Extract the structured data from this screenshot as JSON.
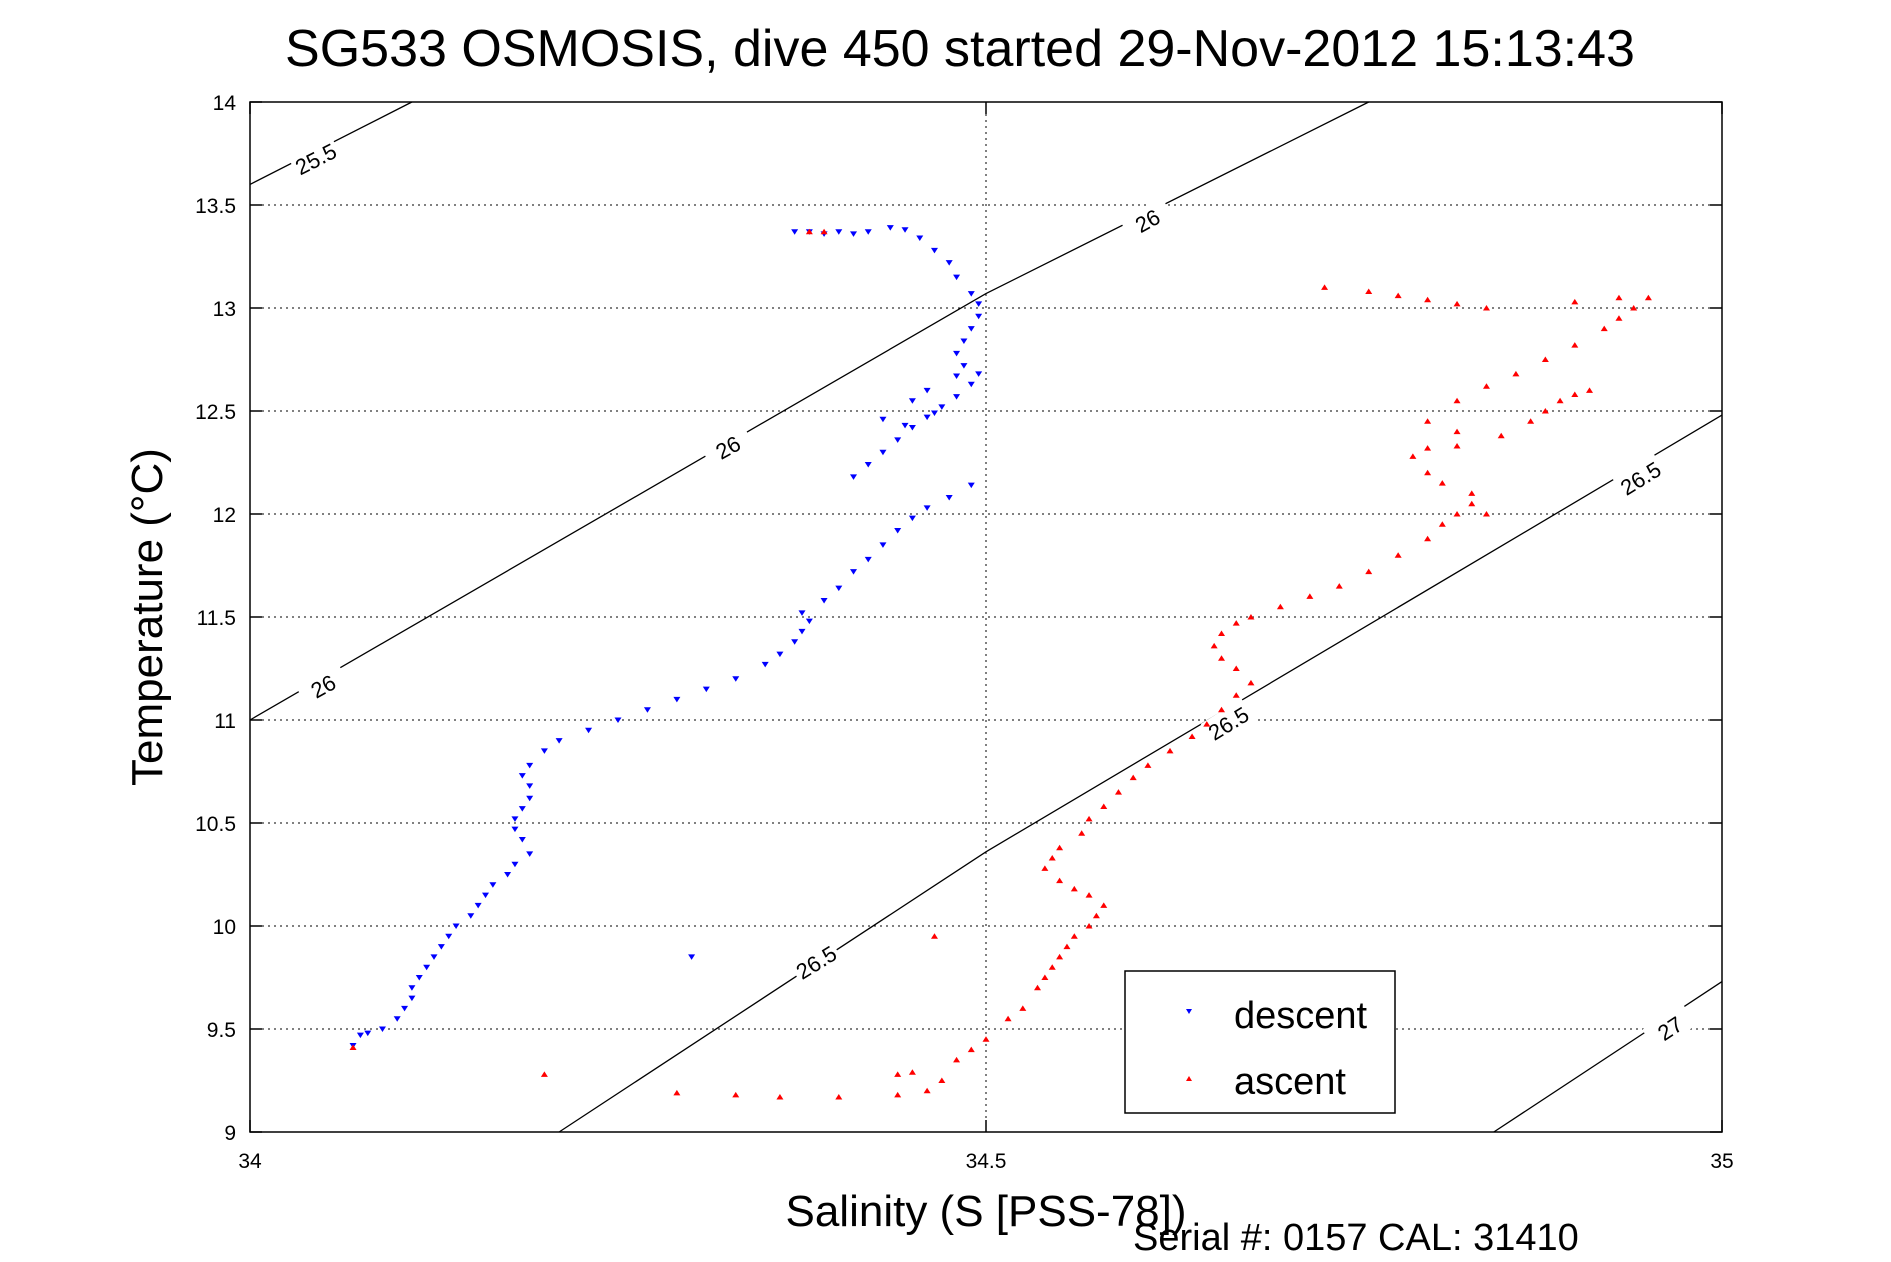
{
  "chart_data": {
    "type": "scatter",
    "title": "SG533 OSMOSIS, dive 450 started 29-Nov-2012 15:13:43",
    "xlabel": "Salinity (S [PSS-78])",
    "ylabel": "Temperature (°C)",
    "xlim": [
      34,
      35
    ],
    "ylim": [
      9,
      14
    ],
    "x_ticks": [
      "34",
      "34.5",
      "35"
    ],
    "y_ticks": [
      "9",
      "9.5",
      "10",
      "10.5",
      "11",
      "11.5",
      "12",
      "12.5",
      "13",
      "13.5",
      "14"
    ],
    "grid": true,
    "legend_position": "bottom-right",
    "footer_text": "Serial #: 0157  CAL: 31410",
    "density_contours": [
      {
        "label": "25.5",
        "points": [
          [
            34,
            13.6
          ],
          [
            34.11,
            14.0
          ]
        ],
        "label_positions": [
          [
            34.045,
            13.72
          ]
        ]
      },
      {
        "label": "26",
        "points": [
          [
            34,
            11.0
          ],
          [
            34.5,
            13.07
          ],
          [
            34.76,
            14.0
          ]
        ],
        "label_positions": [
          [
            34.05,
            11.16
          ],
          [
            34.325,
            12.32
          ],
          [
            34.61,
            13.42
          ]
        ]
      },
      {
        "label": "26.5",
        "points": [
          [
            34.21,
            9.0
          ],
          [
            34.5,
            10.36
          ],
          [
            35,
            12.48
          ]
        ],
        "label_positions": [
          [
            34.385,
            9.82
          ],
          [
            34.665,
            10.98
          ],
          [
            34.945,
            12.17
          ]
        ]
      },
      {
        "label": "27",
        "points": [
          [
            34.845,
            9.0
          ],
          [
            35,
            9.73
          ]
        ],
        "label_positions": [
          [
            34.965,
            9.5
          ]
        ]
      }
    ],
    "series": [
      {
        "name": "descent",
        "color": "#0000ff",
        "marker": "triangle-down",
        "points": [
          [
            34.07,
            9.42
          ],
          [
            34.075,
            9.47
          ],
          [
            34.08,
            9.48
          ],
          [
            34.09,
            9.5
          ],
          [
            34.1,
            9.55
          ],
          [
            34.105,
            9.6
          ],
          [
            34.11,
            9.65
          ],
          [
            34.11,
            9.7
          ],
          [
            34.115,
            9.75
          ],
          [
            34.12,
            9.8
          ],
          [
            34.125,
            9.85
          ],
          [
            34.13,
            9.9
          ],
          [
            34.135,
            9.95
          ],
          [
            34.14,
            10.0
          ],
          [
            34.15,
            10.05
          ],
          [
            34.155,
            10.1
          ],
          [
            34.16,
            10.15
          ],
          [
            34.165,
            10.2
          ],
          [
            34.175,
            10.25
          ],
          [
            34.18,
            10.3
          ],
          [
            34.19,
            10.35
          ],
          [
            34.185,
            10.42
          ],
          [
            34.18,
            10.47
          ],
          [
            34.18,
            10.52
          ],
          [
            34.185,
            10.57
          ],
          [
            34.19,
            10.62
          ],
          [
            34.19,
            10.68
          ],
          [
            34.185,
            10.73
          ],
          [
            34.19,
            10.78
          ],
          [
            34.2,
            10.85
          ],
          [
            34.21,
            10.9
          ],
          [
            34.23,
            10.95
          ],
          [
            34.25,
            11.0
          ],
          [
            34.27,
            11.05
          ],
          [
            34.29,
            11.1
          ],
          [
            34.31,
            11.15
          ],
          [
            34.33,
            11.2
          ],
          [
            34.35,
            11.27
          ],
          [
            34.36,
            11.32
          ],
          [
            34.37,
            11.38
          ],
          [
            34.375,
            11.43
          ],
          [
            34.3,
            9.85
          ],
          [
            34.38,
            11.48
          ],
          [
            34.375,
            11.52
          ],
          [
            34.39,
            11.58
          ],
          [
            34.4,
            11.64
          ],
          [
            34.41,
            11.72
          ],
          [
            34.42,
            11.78
          ],
          [
            34.43,
            11.85
          ],
          [
            34.44,
            11.92
          ],
          [
            34.45,
            11.98
          ],
          [
            34.46,
            12.03
          ],
          [
            34.475,
            12.08
          ],
          [
            34.49,
            12.14
          ],
          [
            34.41,
            12.18
          ],
          [
            34.42,
            12.24
          ],
          [
            34.43,
            12.3
          ],
          [
            34.44,
            12.36
          ],
          [
            34.45,
            12.42
          ],
          [
            34.46,
            12.47
          ],
          [
            34.47,
            12.52
          ],
          [
            34.48,
            12.57
          ],
          [
            34.49,
            12.63
          ],
          [
            34.465,
            12.49
          ],
          [
            34.445,
            12.43
          ],
          [
            34.43,
            12.46
          ],
          [
            34.45,
            12.55
          ],
          [
            34.46,
            12.6
          ],
          [
            34.48,
            12.67
          ],
          [
            34.485,
            12.72
          ],
          [
            34.48,
            12.78
          ],
          [
            34.485,
            12.84
          ],
          [
            34.49,
            12.9
          ],
          [
            34.495,
            12.96
          ],
          [
            34.495,
            13.02
          ],
          [
            34.49,
            13.07
          ],
          [
            34.48,
            13.15
          ],
          [
            34.475,
            13.22
          ],
          [
            34.465,
            13.28
          ],
          [
            34.455,
            13.34
          ],
          [
            34.445,
            13.38
          ],
          [
            34.435,
            13.39
          ],
          [
            34.42,
            13.37
          ],
          [
            34.41,
            13.36
          ],
          [
            34.4,
            13.37
          ],
          [
            34.39,
            13.36
          ],
          [
            34.38,
            13.37
          ],
          [
            34.37,
            13.37
          ],
          [
            34.495,
            12.68
          ]
        ]
      },
      {
        "name": "ascent",
        "color": "#ff0000",
        "marker": "triangle-up",
        "points": [
          [
            34.07,
            9.41
          ],
          [
            34.2,
            9.28
          ],
          [
            34.29,
            9.19
          ],
          [
            34.33,
            9.18
          ],
          [
            34.36,
            9.17
          ],
          [
            34.4,
            9.17
          ],
          [
            34.44,
            9.18
          ],
          [
            34.46,
            9.2
          ],
          [
            34.47,
            9.25
          ],
          [
            34.44,
            9.28
          ],
          [
            34.45,
            9.29
          ],
          [
            34.465,
            9.95
          ],
          [
            34.48,
            9.35
          ],
          [
            34.49,
            9.4
          ],
          [
            34.5,
            9.45
          ],
          [
            34.515,
            9.55
          ],
          [
            34.525,
            9.6
          ],
          [
            34.535,
            9.7
          ],
          [
            34.54,
            9.75
          ],
          [
            34.545,
            9.8
          ],
          [
            34.55,
            9.85
          ],
          [
            34.555,
            9.9
          ],
          [
            34.56,
            9.95
          ],
          [
            34.57,
            10.0
          ],
          [
            34.575,
            10.05
          ],
          [
            34.58,
            10.1
          ],
          [
            34.57,
            10.15
          ],
          [
            34.56,
            10.18
          ],
          [
            34.55,
            10.22
          ],
          [
            34.54,
            10.28
          ],
          [
            34.545,
            10.33
          ],
          [
            34.55,
            10.38
          ],
          [
            34.565,
            10.45
          ],
          [
            34.57,
            10.52
          ],
          [
            34.58,
            10.58
          ],
          [
            34.59,
            10.65
          ],
          [
            34.6,
            10.72
          ],
          [
            34.61,
            10.78
          ],
          [
            34.625,
            10.85
          ],
          [
            34.64,
            10.92
          ],
          [
            34.65,
            10.98
          ],
          [
            34.66,
            11.05
          ],
          [
            34.67,
            11.12
          ],
          [
            34.68,
            11.18
          ],
          [
            34.67,
            11.25
          ],
          [
            34.66,
            11.3
          ],
          [
            34.655,
            11.36
          ],
          [
            34.66,
            11.42
          ],
          [
            34.67,
            11.47
          ],
          [
            34.68,
            11.5
          ],
          [
            34.7,
            11.55
          ],
          [
            34.72,
            11.6
          ],
          [
            34.74,
            11.65
          ],
          [
            34.76,
            11.72
          ],
          [
            34.78,
            11.8
          ],
          [
            34.8,
            11.88
          ],
          [
            34.81,
            11.95
          ],
          [
            34.82,
            12.0
          ],
          [
            34.83,
            12.05
          ],
          [
            34.84,
            12.0
          ],
          [
            34.83,
            12.1
          ],
          [
            34.81,
            12.15
          ],
          [
            34.8,
            12.2
          ],
          [
            34.79,
            12.28
          ],
          [
            34.8,
            12.32
          ],
          [
            34.82,
            12.33
          ],
          [
            34.85,
            12.38
          ],
          [
            34.87,
            12.45
          ],
          [
            34.88,
            12.5
          ],
          [
            34.89,
            12.55
          ],
          [
            34.9,
            12.58
          ],
          [
            34.91,
            12.6
          ],
          [
            34.82,
            12.4
          ],
          [
            34.8,
            12.45
          ],
          [
            34.82,
            12.55
          ],
          [
            34.84,
            12.62
          ],
          [
            34.86,
            12.68
          ],
          [
            34.88,
            12.75
          ],
          [
            34.9,
            12.82
          ],
          [
            34.92,
            12.9
          ],
          [
            34.93,
            12.95
          ],
          [
            34.94,
            13.0
          ],
          [
            34.95,
            13.05
          ],
          [
            34.93,
            13.05
          ],
          [
            34.9,
            13.03
          ],
          [
            34.84,
            13.0
          ],
          [
            34.82,
            13.02
          ],
          [
            34.8,
            13.04
          ],
          [
            34.78,
            13.06
          ],
          [
            34.76,
            13.08
          ],
          [
            34.73,
            13.1
          ],
          [
            34.38,
            13.37
          ],
          [
            34.39,
            13.37
          ]
        ]
      }
    ]
  }
}
